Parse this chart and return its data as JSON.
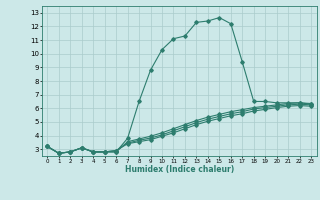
{
  "title": "",
  "xlabel": "Humidex (Indice chaleur)",
  "ylabel": "",
  "bg_color": "#cce8e8",
  "grid_color": "#aacccc",
  "line_color": "#2d7d6e",
  "xlim": [
    -0.5,
    23.5
  ],
  "ylim": [
    2.5,
    13.5
  ],
  "xticks": [
    0,
    1,
    2,
    3,
    4,
    5,
    6,
    7,
    8,
    9,
    10,
    11,
    12,
    13,
    14,
    15,
    16,
    17,
    18,
    19,
    20,
    21,
    22,
    23
  ],
  "yticks": [
    3,
    4,
    5,
    6,
    7,
    8,
    9,
    10,
    11,
    12,
    13
  ],
  "line1_x": [
    0,
    1,
    2,
    3,
    4,
    5,
    6,
    7,
    8,
    9,
    10,
    11,
    12,
    13,
    14,
    15,
    16,
    17,
    18,
    19,
    20,
    21,
    22,
    23
  ],
  "line1_y": [
    3.2,
    2.7,
    2.8,
    3.1,
    2.8,
    2.8,
    2.8,
    3.8,
    6.5,
    8.8,
    10.3,
    11.1,
    11.3,
    12.3,
    12.4,
    12.65,
    12.2,
    9.4,
    6.5,
    6.5,
    6.4,
    6.4,
    6.4,
    6.3
  ],
  "line2_x": [
    0,
    1,
    2,
    3,
    4,
    5,
    6,
    7,
    8,
    9,
    10,
    11,
    12,
    13,
    14,
    15,
    16,
    17,
    18,
    19,
    20,
    21,
    22,
    23
  ],
  "line2_y": [
    3.2,
    2.7,
    2.8,
    3.1,
    2.8,
    2.8,
    2.8,
    3.55,
    3.75,
    3.95,
    4.2,
    4.5,
    4.8,
    5.1,
    5.35,
    5.55,
    5.75,
    5.9,
    6.05,
    6.15,
    6.25,
    6.35,
    6.4,
    6.35
  ],
  "line3_x": [
    0,
    1,
    2,
    3,
    4,
    5,
    6,
    7,
    8,
    9,
    10,
    11,
    12,
    13,
    14,
    15,
    16,
    17,
    18,
    19,
    20,
    21,
    22,
    23
  ],
  "line3_y": [
    3.2,
    2.7,
    2.8,
    3.1,
    2.8,
    2.8,
    2.9,
    3.45,
    3.65,
    3.82,
    4.05,
    4.35,
    4.65,
    4.95,
    5.2,
    5.4,
    5.6,
    5.75,
    5.95,
    6.05,
    6.15,
    6.25,
    6.3,
    6.25
  ],
  "line4_x": [
    0,
    1,
    2,
    3,
    4,
    5,
    6,
    7,
    8,
    9,
    10,
    11,
    12,
    13,
    14,
    15,
    16,
    17,
    18,
    19,
    20,
    21,
    22,
    23
  ],
  "line4_y": [
    3.2,
    2.7,
    2.8,
    3.1,
    2.8,
    2.8,
    2.9,
    3.4,
    3.55,
    3.7,
    3.95,
    4.2,
    4.5,
    4.8,
    5.05,
    5.25,
    5.45,
    5.6,
    5.8,
    5.92,
    6.05,
    6.15,
    6.2,
    6.15
  ]
}
